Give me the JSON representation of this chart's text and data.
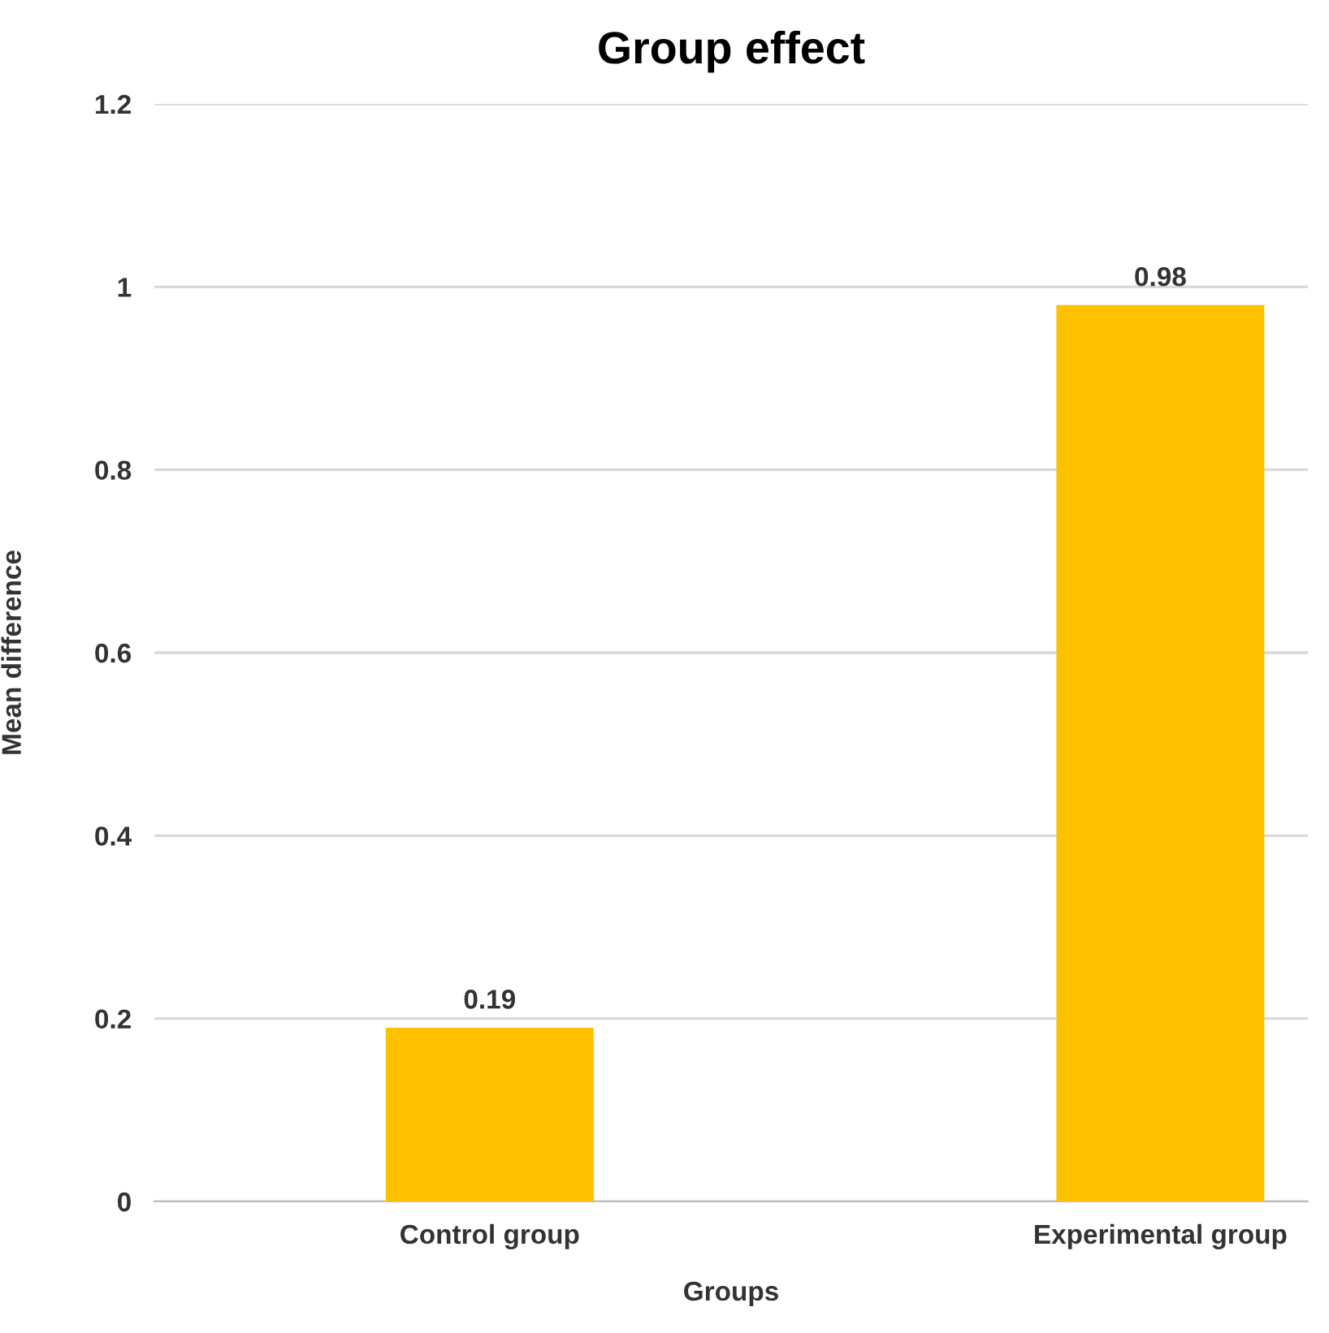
{
  "chart_data": {
    "type": "bar",
    "title": "Group effect",
    "xlabel": "Groups",
    "ylabel": "Mean difference",
    "categories": [
      "Control group",
      "Experimental group"
    ],
    "values": [
      0.19,
      0.98
    ],
    "color": "#ffc000",
    "ylim": [
      0,
      1.2
    ],
    "yticks": [
      0,
      0.2,
      0.4,
      0.6,
      0.8,
      1,
      1.2
    ],
    "grid": "y",
    "data_labels": true
  }
}
